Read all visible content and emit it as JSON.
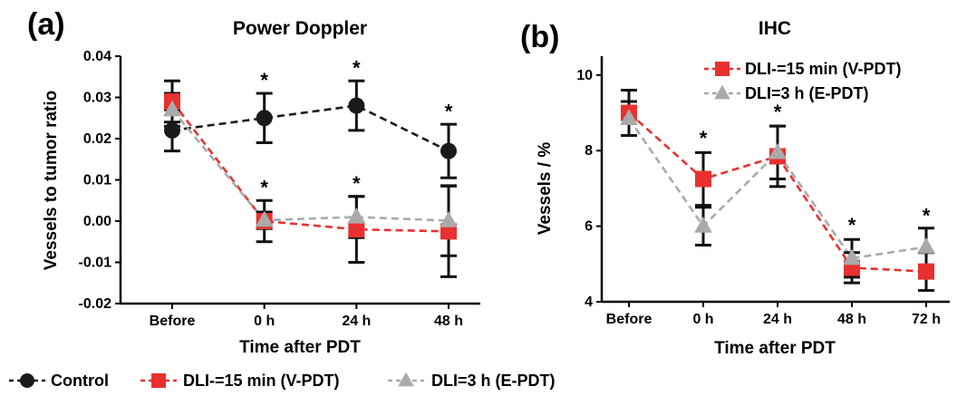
{
  "chart_data": [
    {
      "panel": "(a)",
      "type": "line",
      "title": "Power Doppler",
      "xlabel": "Time after PDT",
      "ylabel": "Vessels to tumor ratio",
      "categories": [
        "Before",
        "0 h",
        "24 h",
        "48 h"
      ],
      "ylim": [
        -0.02,
        0.04
      ],
      "yticks": [
        "-0.02",
        "-0.01",
        "0.00",
        "0.01",
        "0.02",
        "0.03",
        "0.04"
      ],
      "ytick_values": [
        -0.02,
        -0.01,
        0.0,
        0.01,
        0.02,
        0.03,
        0.04
      ],
      "grid": false,
      "series": [
        {
          "name": "Control",
          "color": "#1a1a1a",
          "marker": "circle",
          "values": [
            0.022,
            0.025,
            0.028,
            0.017
          ],
          "err": [
            0.005,
            0.006,
            0.006,
            0.0065
          ]
        },
        {
          "name": "DLI-=15 min (V-PDT)",
          "color": "#e8312f",
          "marker": "square",
          "values": [
            0.029,
            0.0,
            -0.002,
            -0.0025
          ],
          "err": [
            0.005,
            0.005,
            0.008,
            0.011
          ]
        },
        {
          "name": "DLI=3 h (E-PDT)",
          "color": "#aaaaaa",
          "marker": "triangle",
          "values": [
            0.027,
            0.0002,
            0.001,
            0.0001
          ],
          "err": [
            0.004,
            0.002,
            0.005,
            0.0085
          ]
        }
      ],
      "annotations": [
        {
          "text": "*",
          "category": "0 h",
          "y": 0.0325
        },
        {
          "text": "*",
          "category": "24 h",
          "y": 0.0355
        },
        {
          "text": "*",
          "category": "48 h",
          "y": 0.025
        },
        {
          "text": "*",
          "category": "0 h",
          "y": 0.0065
        },
        {
          "text": "*",
          "category": "24 h",
          "y": 0.0075
        }
      ]
    },
    {
      "panel": "(b)",
      "type": "line",
      "title": "IHC",
      "xlabel": "Time after PDT",
      "ylabel": "Vessels / %",
      "categories": [
        "Before",
        "0 h",
        "24 h",
        "48 h",
        "72 h"
      ],
      "ylim": [
        4,
        10.5
      ],
      "yticks": [
        "4",
        "6",
        "8",
        "10"
      ],
      "ytick_values": [
        4,
        6,
        8,
        10
      ],
      "grid": false,
      "legend_position": "top-right",
      "series": [
        {
          "name": "DLI-=15 min (V-PDT)",
          "color": "#e8312f",
          "marker": "square",
          "values": [
            9.0,
            7.25,
            7.85,
            4.9,
            4.8
          ],
          "err": [
            0.6,
            0.7,
            0.8,
            0.4,
            0.5
          ]
        },
        {
          "name": "DLI=3 h (E-PDT)",
          "color": "#aaaaaa",
          "marker": "triangle",
          "values": [
            8.85,
            6.0,
            7.95,
            5.15,
            5.45
          ],
          "err": [
            0.45,
            0.5,
            0.7,
            0.5,
            0.5
          ]
        }
      ],
      "annotations": [
        {
          "text": "*",
          "category": "0 h",
          "y": 8.15
        },
        {
          "text": "*",
          "category": "24 h",
          "y": 8.85
        },
        {
          "text": "*",
          "category": "48 h",
          "y": 5.85
        },
        {
          "text": "*",
          "category": "72 h",
          "y": 6.1
        }
      ]
    }
  ],
  "legend": {
    "position": "bottom-left",
    "items": [
      {
        "label": "Control",
        "color": "#1a1a1a",
        "marker": "circle"
      },
      {
        "label": "DLI-=15 min (V-PDT)",
        "color": "#e8312f",
        "marker": "square"
      },
      {
        "label": "DLI=3 h (E-PDT)",
        "color": "#aaaaaa",
        "marker": "triangle"
      }
    ]
  }
}
